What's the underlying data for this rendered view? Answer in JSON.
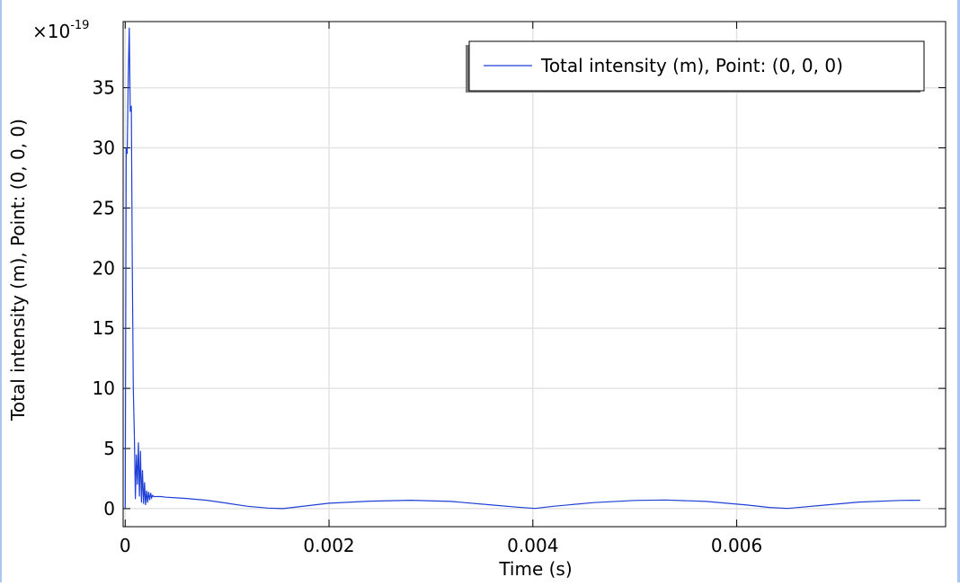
{
  "chart_data": {
    "type": "line",
    "title": "",
    "xlabel": "Time (s)",
    "ylabel": "Total intensity (m), Point: (0, 0, 0)",
    "y_multiplier": "×10",
    "y_multiplier_exp": "-19",
    "xlim": [
      -2e-05,
      0.00805
    ],
    "ylim": [
      -1.5,
      40.5
    ],
    "x_ticks": [
      {
        "value": 0,
        "label": "0"
      },
      {
        "value": 0.002,
        "label": "0.002"
      },
      {
        "value": 0.004,
        "label": "0.004"
      },
      {
        "value": 0.006,
        "label": "0.006"
      }
    ],
    "y_ticks": [
      {
        "value": 0,
        "label": "0"
      },
      {
        "value": 5,
        "label": "5"
      },
      {
        "value": 10,
        "label": "10"
      },
      {
        "value": 15,
        "label": "15"
      },
      {
        "value": 20,
        "label": "20"
      },
      {
        "value": 25,
        "label": "25"
      },
      {
        "value": 30,
        "label": "30"
      },
      {
        "value": 35,
        "label": "35"
      }
    ],
    "grid": true,
    "legend_position": "top-right",
    "series": [
      {
        "name": "Total intensity (m), Point: (0, 0, 0)",
        "color": "#1f3fd6",
        "x": [
          0,
          1e-05,
          2e-05,
          3e-05,
          4e-05,
          5e-05,
          6e-05,
          7e-05,
          8e-05,
          9e-05,
          0.0001,
          0.00011,
          0.00012,
          0.00013,
          0.00014,
          0.00015,
          0.00016,
          0.00017,
          0.00018,
          0.00019,
          0.0002,
          0.00021,
          0.00022,
          0.00023,
          0.00024,
          0.00025,
          0.00026,
          0.00027,
          0.00028,
          0.0003,
          0.00035,
          0.0004,
          0.0005,
          0.0006,
          0.0008,
          0.001,
          0.0012,
          0.0014,
          0.00155,
          0.0017,
          0.002,
          0.0024,
          0.0028,
          0.0032,
          0.0036,
          0.00385,
          0.00402,
          0.0042,
          0.0046,
          0.005,
          0.0053,
          0.0057,
          0.0061,
          0.00632,
          0.0065,
          0.0068,
          0.0072,
          0.0076,
          0.0078
        ],
        "values": [
          0,
          30,
          29.5,
          36,
          40,
          33,
          33.5,
          20,
          10,
          6,
          0.8,
          4.5,
          2,
          5.5,
          1,
          4.8,
          0.5,
          3.2,
          0.4,
          2.2,
          0.3,
          1.5,
          0.5,
          1.4,
          0.7,
          1.3,
          0.9,
          1.1,
          1.0,
          1.0,
          1.0,
          0.95,
          0.9,
          0.85,
          0.7,
          0.45,
          0.2,
          0.05,
          0.0,
          0.15,
          0.45,
          0.62,
          0.7,
          0.6,
          0.3,
          0.12,
          0.02,
          0.2,
          0.5,
          0.68,
          0.72,
          0.6,
          0.3,
          0.1,
          0.02,
          0.25,
          0.55,
          0.68,
          0.7
        ]
      }
    ]
  }
}
